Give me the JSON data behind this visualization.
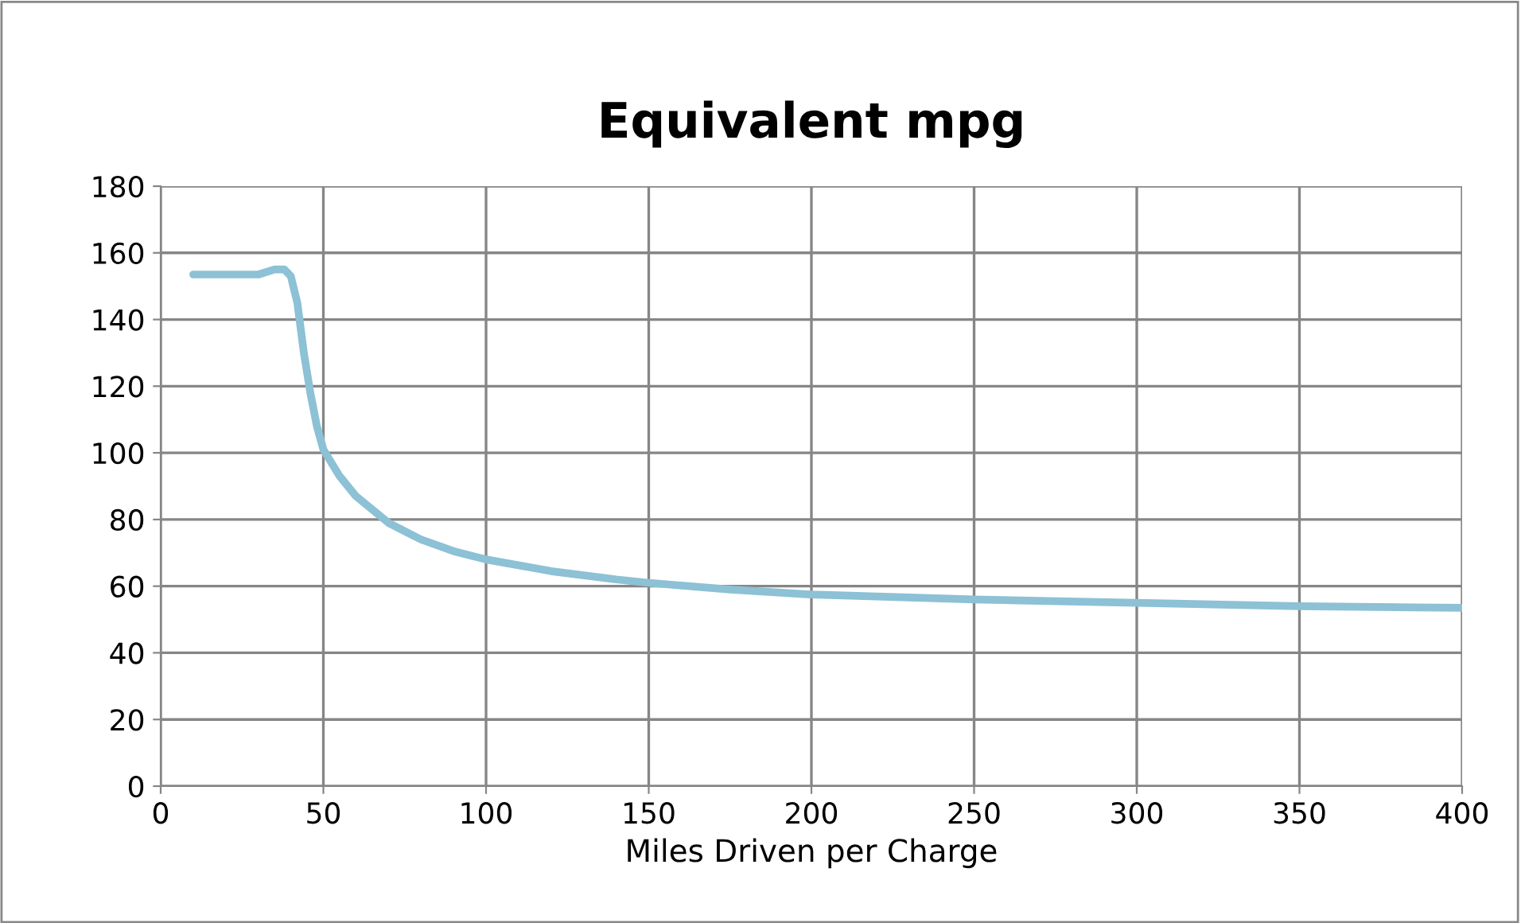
{
  "chart_data": {
    "type": "line",
    "title": "Equivalent mpg",
    "xlabel": "Miles Driven per Charge",
    "x": [
      10,
      30,
      35,
      38,
      40,
      42,
      44,
      46,
      48,
      50,
      55,
      60,
      65,
      70,
      80,
      90,
      100,
      120,
      140,
      150,
      175,
      200,
      250,
      300,
      350,
      400
    ],
    "series": [
      {
        "color": "#8dc1d5",
        "values": [
          153.5,
          153.5,
          155,
          155,
          153,
          145,
          130,
          118,
          108,
          101,
          93,
          87,
          83,
          79,
          74,
          70.5,
          68,
          64.5,
          62,
          61,
          59,
          57.5,
          56,
          55,
          54,
          53.5
        ]
      }
    ],
    "xlim": [
      0,
      400
    ],
    "xticks": [
      0,
      50,
      100,
      150,
      200,
      250,
      300,
      350,
      400
    ],
    "ylim": [
      0,
      180
    ],
    "yticks": [
      0,
      20,
      40,
      60,
      80,
      100,
      120,
      140,
      160,
      180
    ],
    "grid": true,
    "marker": "none",
    "line_style": "solid"
  }
}
